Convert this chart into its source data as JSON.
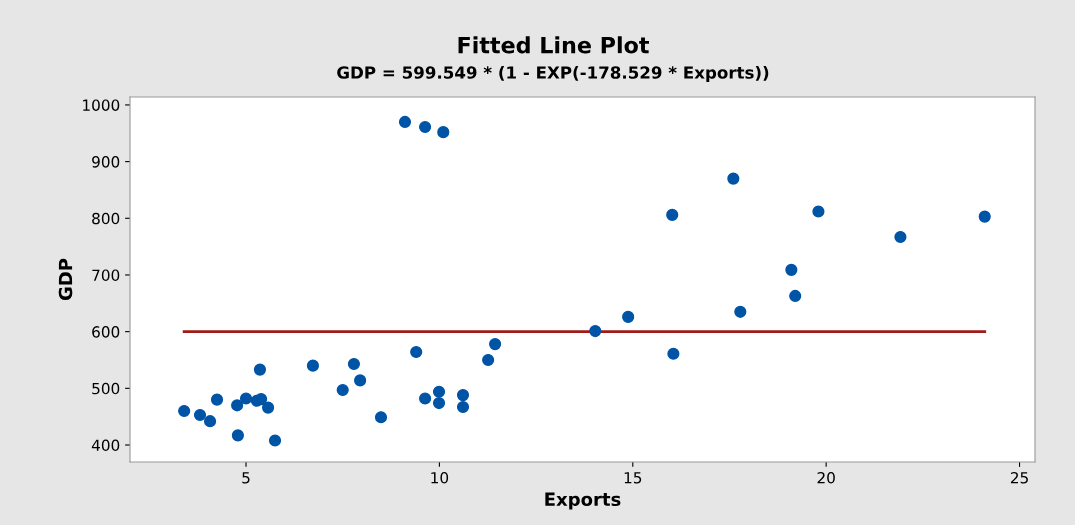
{
  "chart_data": {
    "type": "scatter",
    "title": "Fitted Line Plot",
    "subtitle": "GDP = 599.549 * (1 - EXP(-178.529 * Exports))",
    "xlabel": "Exports",
    "ylabel": "GDP",
    "xlim": [
      2.0,
      25.4
    ],
    "ylim": [
      370,
      1014
    ],
    "xticks": [
      5,
      10,
      15,
      20,
      25
    ],
    "yticks": [
      400,
      500,
      600,
      700,
      800,
      900,
      1000
    ],
    "grid": false,
    "legend": false,
    "marker": "circle",
    "series": [
      {
        "color": "#0054a6",
        "x": [
          3.4,
          3.81,
          4.07,
          4.25,
          4.77,
          4.79,
          5.0,
          5.28,
          5.39,
          5.36,
          5.57,
          5.75,
          6.73,
          7.5,
          7.79,
          7.95,
          8.49,
          9.11,
          9.4,
          9.63,
          9.63,
          9.99,
          9.99,
          10.1,
          10.61,
          10.61,
          11.26,
          11.44,
          14.03,
          14.88,
          16.02,
          16.05,
          17.6,
          17.78,
          19.1,
          19.2,
          19.8,
          21.92,
          24.1
        ],
        "values": [
          460,
          453,
          442,
          480,
          470,
          417,
          482,
          478,
          481,
          533,
          466,
          408,
          540,
          497,
          543,
          514,
          449,
          970,
          564,
          482,
          961,
          494,
          474,
          952,
          488,
          467,
          550,
          578,
          601,
          626,
          806,
          561,
          870,
          635,
          709,
          663,
          812,
          767,
          803
        ]
      },
      {
        "type": "line",
        "color": "#a01a1a",
        "marker": "none",
        "x": [
          3.4,
          24.1
        ],
        "values": [
          600,
          600
        ]
      }
    ]
  }
}
